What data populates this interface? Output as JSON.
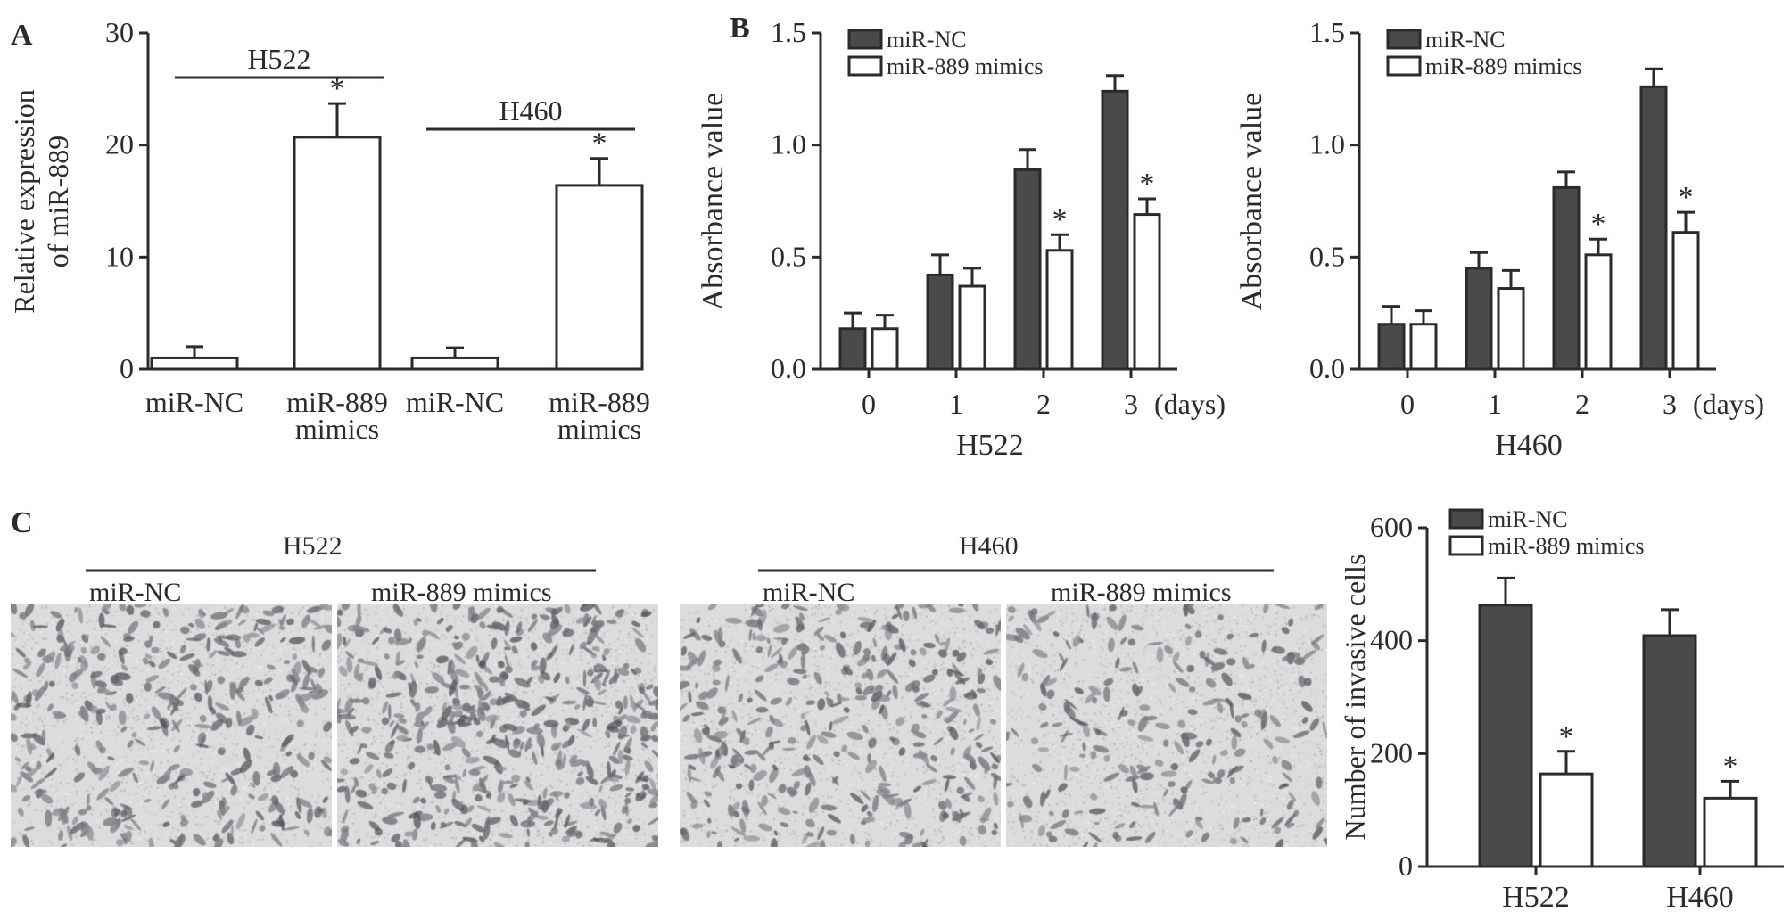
{
  "figure": {
    "panel_letters": [
      "A",
      "B",
      "C"
    ]
  },
  "colors": {
    "miR_NC": "#4a4a4a",
    "miR_889_mimics": "#ffffff",
    "axis": "#2b2b2b"
  },
  "chart_data": [
    {
      "id": "A",
      "type": "bar",
      "ylabel_lines": [
        "Relative expression",
        "of miR-889"
      ],
      "xlabel": "",
      "ylim": [
        0,
        30
      ],
      "yticks": [
        0,
        10,
        20,
        30
      ],
      "categories": [
        {
          "lines": [
            "miR-NC"
          ]
        },
        {
          "lines": [
            "miR-889",
            "mimics"
          ]
        },
        {
          "lines": [
            "miR-NC"
          ]
        },
        {
          "lines": [
            "miR-889",
            "mimics"
          ]
        }
      ],
      "values": [
        1.0,
        20.7,
        1.0,
        16.4
      ],
      "errors": [
        1.0,
        3.0,
        0.9,
        2.4
      ],
      "significant": [
        false,
        true,
        false,
        true
      ],
      "groups": [
        {
          "label": "H522",
          "span": [
            0,
            1
          ]
        },
        {
          "label": "H460",
          "span": [
            2,
            3
          ]
        }
      ],
      "annotation": "*"
    },
    {
      "id": "B1",
      "type": "bar",
      "ylabel": "Absorbance value",
      "xlabel": "H522",
      "ylim": [
        0,
        1.5
      ],
      "yticks": [
        "0.0",
        "0.5",
        "1.0",
        "1.5"
      ],
      "categories": [
        "0",
        "1",
        "2",
        "3"
      ],
      "x_unit": "(days)",
      "legend": "top-left",
      "series": [
        {
          "name": "miR-NC",
          "values": [
            0.18,
            0.42,
            0.89,
            1.24
          ],
          "errors": [
            0.07,
            0.09,
            0.09,
            0.07
          ],
          "significant": [
            false,
            false,
            false,
            false
          ]
        },
        {
          "name": "miR-889 mimics",
          "values": [
            0.18,
            0.37,
            0.53,
            0.69
          ],
          "errors": [
            0.06,
            0.08,
            0.07,
            0.07
          ],
          "significant": [
            false,
            false,
            true,
            true
          ]
        }
      ],
      "annotation": "*"
    },
    {
      "id": "B2",
      "type": "bar",
      "ylabel": "Absorbance value",
      "xlabel": "H460",
      "ylim": [
        0,
        1.5
      ],
      "yticks": [
        "0.0",
        "0.5",
        "1.0",
        "1.5"
      ],
      "categories": [
        "0",
        "1",
        "2",
        "3"
      ],
      "x_unit": "(days)",
      "legend": "top-left",
      "series": [
        {
          "name": "miR-NC",
          "values": [
            0.2,
            0.45,
            0.81,
            1.26
          ],
          "errors": [
            0.08,
            0.07,
            0.07,
            0.08
          ],
          "significant": [
            false,
            false,
            false,
            false
          ]
        },
        {
          "name": "miR-889 mimics",
          "values": [
            0.2,
            0.36,
            0.51,
            0.61
          ],
          "errors": [
            0.06,
            0.08,
            0.07,
            0.09
          ],
          "significant": [
            false,
            false,
            true,
            true
          ]
        }
      ],
      "annotation": "*"
    },
    {
      "id": "C",
      "type": "bar",
      "ylabel": "Number of invasive cells",
      "xlabel": "",
      "ylim": [
        0,
        600
      ],
      "yticks": [
        0,
        200,
        400,
        600
      ],
      "categories": [
        "H522",
        "H460"
      ],
      "legend": "top-left",
      "series": [
        {
          "name": "miR-NC",
          "values": [
            463,
            409
          ],
          "errors": [
            48,
            46
          ],
          "significant": [
            false,
            false
          ]
        },
        {
          "name": "miR-889 mimics",
          "values": [
            164,
            121
          ],
          "errors": [
            40,
            30
          ],
          "significant": [
            true,
            true
          ]
        }
      ],
      "annotation": "*"
    }
  ],
  "micrographs": {
    "groups": [
      {
        "label": "H522",
        "panels": [
          "miR-NC",
          "miR-889 mimics"
        ],
        "density": [
          0.55,
          0.75
        ]
      },
      {
        "label": "H460",
        "panels": [
          "miR-NC",
          "miR-889 mimics"
        ],
        "density": [
          0.55,
          0.35
        ]
      }
    ]
  }
}
